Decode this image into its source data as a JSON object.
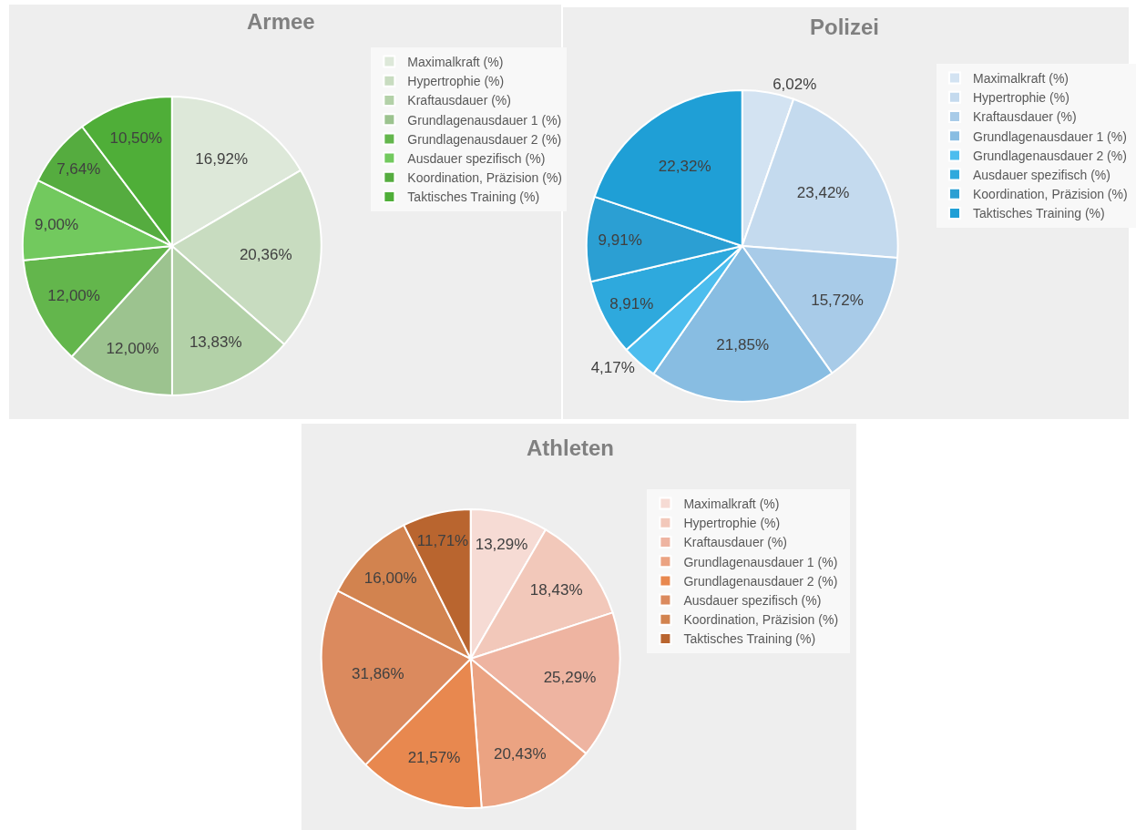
{
  "chart_data": [
    {
      "type": "pie",
      "title": "Armee",
      "categories": [
        "Maximalkraft (%)",
        "Hypertrophie (%)",
        "Kraftausdauer (%)",
        "Grundlagenausdauer 1 (%)",
        "Grundlagenausdauer 2 (%)",
        "Ausdauer spezifisch (%)",
        "Koordination, Präzision (%)",
        "Taktisches Training (%)"
      ],
      "values": [
        16.92,
        20.36,
        13.83,
        12.0,
        12.0,
        9.0,
        7.64,
        10.5
      ],
      "value_labels": [
        "16,92%",
        "20,36%",
        "13,83%",
        "12,00%",
        "12,00%",
        "9,00%",
        "7,64%",
        "10,50%"
      ],
      "colors": [
        "#dde8d9",
        "#c8dcc0",
        "#b3d1a8",
        "#9cc38f",
        "#63b64c",
        "#72c95e",
        "#55ac3f",
        "#4fae38"
      ],
      "legend": "right"
    },
    {
      "type": "pie",
      "title": "Polizei",
      "categories": [
        "Maximalkraft (%)",
        "Hypertrophie (%)",
        "Kraftausdauer (%)",
        "Grundlagenausdauer 1 (%)",
        "Grundlagenausdauer 2 (%)",
        "Ausdauer spezifisch (%)",
        "Koordination, Präzision (%)",
        "Taktisches Training (%)"
      ],
      "values": [
        6.02,
        23.42,
        15.72,
        21.85,
        4.17,
        8.91,
        9.91,
        22.32
      ],
      "value_labels": [
        "6,02%",
        "23,42%",
        "15,72%",
        "21,85%",
        "4,17%",
        "8,91%",
        "9,91%",
        "22,32%"
      ],
      "colors": [
        "#d3e3f2",
        "#c4daee",
        "#a8cbe8",
        "#88bde2",
        "#4cbdee",
        "#2ea9dd",
        "#2b9fd3",
        "#1f9fd6"
      ],
      "legend": "right"
    },
    {
      "type": "pie",
      "title": "Athleten",
      "categories": [
        "Maximalkraft (%)",
        "Hypertrophie (%)",
        "Kraftausdauer (%)",
        "Grundlagenausdauer 1 (%)",
        "Grundlagenausdauer 2 (%)",
        "Ausdauer spezifisch (%)",
        "Koordination, Präzision (%)",
        "Taktisches Training (%)"
      ],
      "values": [
        13.29,
        18.43,
        25.29,
        20.43,
        21.57,
        31.86,
        16.0,
        11.71
      ],
      "value_labels": [
        "13,29%",
        "18,43%",
        "25,29%",
        "20,43%",
        "21,57%",
        "31,86%",
        "16,00%",
        "11,71%"
      ],
      "colors": [
        "#f6dbd4",
        "#f2c8ba",
        "#eeb4a1",
        "#eba382",
        "#e8884f",
        "#db8a5e",
        "#d2834f",
        "#b9652f"
      ],
      "legend": "right"
    }
  ]
}
